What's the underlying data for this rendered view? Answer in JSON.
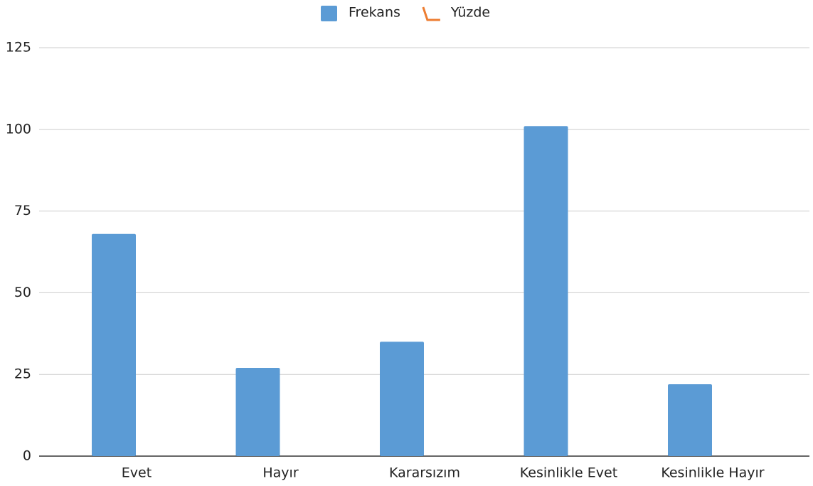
{
  "chart_data": {
    "type": "bar",
    "categories": [
      "Evet",
      "Hayır",
      "Kararsızım",
      "Kesinlikle Evet",
      "Kesinlikle Hayır"
    ],
    "series": [
      {
        "name": "Frekans",
        "color": "#5b9bd5",
        "type": "bar",
        "values": [
          68,
          27,
          35,
          101,
          22
        ]
      },
      {
        "name": "Yüzde",
        "color": "#ed7d31",
        "type": "line",
        "values": [
          null,
          null,
          null,
          null,
          null
        ]
      }
    ],
    "ylim": [
      0,
      125
    ],
    "yticks": [
      0,
      25,
      50,
      75,
      100,
      125
    ],
    "grid": true
  }
}
